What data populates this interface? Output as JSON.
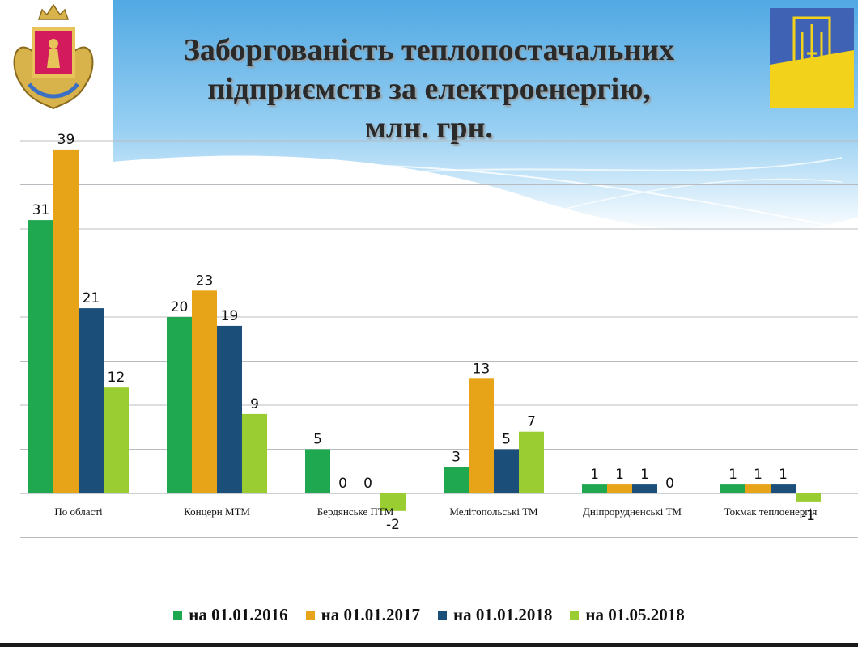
{
  "slide": {
    "title_lines": [
      "Заборгованість теплопостачальних",
      "підприємств за електроенергію,",
      "млн. грн."
    ]
  },
  "chart_data": {
    "type": "bar",
    "categories": [
      "По області",
      "Концерн МТМ",
      "Бердянське ПТМ",
      "Мелітопольські ТМ",
      "Дніпрорудненські ТМ",
      "Токмак теплоенергія"
    ],
    "series": [
      {
        "name": "на 01.01.2016",
        "color": "#1fa84f",
        "values": [
          31,
          20,
          5,
          3,
          1,
          1
        ]
      },
      {
        "name": "на 01.01.2017",
        "color": "#e8a418",
        "values": [
          39,
          23,
          0,
          13,
          1,
          1
        ]
      },
      {
        "name": "на 01.01.2018",
        "color": "#1b4f7a",
        "values": [
          21,
          19,
          0,
          5,
          1,
          1
        ]
      },
      {
        "name": "на 01.05.2018",
        "color": "#9acd32",
        "values": [
          12,
          9,
          -2,
          7,
          0,
          -1
        ]
      }
    ],
    "ylim": [
      -5,
      40
    ],
    "grid": true,
    "legend": "bottom",
    "data_labels": true
  }
}
